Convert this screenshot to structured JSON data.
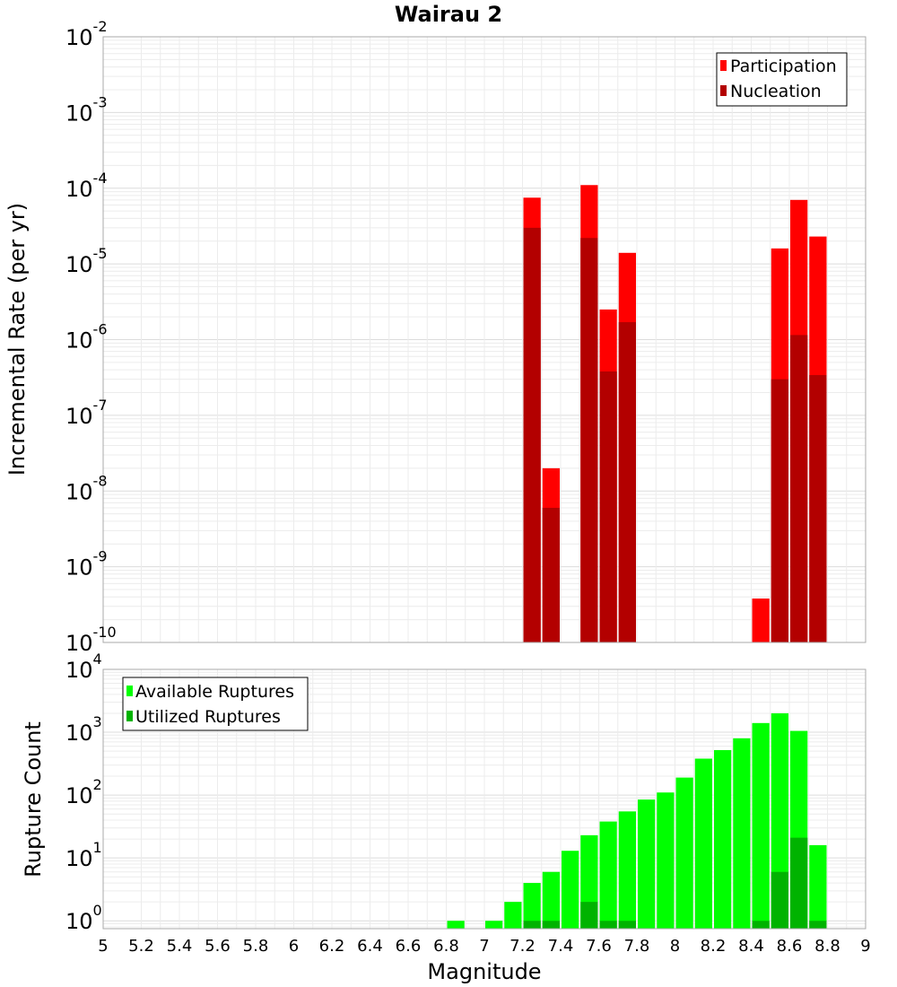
{
  "chart_data": {
    "type": "bar",
    "title": "Wairau 2",
    "xlabel": "Magnitude",
    "x_ticks": [
      "5",
      "5.2",
      "5.4",
      "5.6",
      "5.8",
      "6",
      "6.2",
      "6.4",
      "6.6",
      "6.8",
      "7",
      "7.2",
      "7.4",
      "7.6",
      "7.8",
      "8",
      "8.2",
      "8.4",
      "8.6",
      "8.8",
      "9"
    ],
    "xlim": [
      5,
      9
    ],
    "bin_width": 0.1,
    "grid": true,
    "panels": [
      {
        "id": "rate",
        "ylabel": "Incremental Rate (per yr)",
        "yscale": "log",
        "ylim": [
          1e-10,
          0.01
        ],
        "y_ticks": [
          {
            "base": "10",
            "exp": "-10",
            "value": 1e-10
          },
          {
            "base": "10",
            "exp": "-9",
            "value": 1e-09
          },
          {
            "base": "10",
            "exp": "-8",
            "value": 1e-08
          },
          {
            "base": "10",
            "exp": "-7",
            "value": 1e-07
          },
          {
            "base": "10",
            "exp": "-6",
            "value": 1e-06
          },
          {
            "base": "10",
            "exp": "-5",
            "value": 1e-05
          },
          {
            "base": "10",
            "exp": "-4",
            "value": 0.0001
          },
          {
            "base": "10",
            "exp": "-3",
            "value": 0.001
          },
          {
            "base": "10",
            "exp": "-2",
            "value": 0.01
          }
        ],
        "legend": {
          "position": "top-right"
        },
        "series": [
          {
            "name": "Participation",
            "color": "#ff0000",
            "points": [
              {
                "x": 7.25,
                "y": 7.5e-05
              },
              {
                "x": 7.35,
                "y": 2e-08
              },
              {
                "x": 7.55,
                "y": 0.00011
              },
              {
                "x": 7.65,
                "y": 2.5e-06
              },
              {
                "x": 7.75,
                "y": 1.4e-05
              },
              {
                "x": 8.45,
                "y": 3.8e-10
              },
              {
                "x": 8.55,
                "y": 1.6e-05
              },
              {
                "x": 8.65,
                "y": 7e-05
              },
              {
                "x": 8.75,
                "y": 2.3e-05
              }
            ]
          },
          {
            "name": "Nucleation",
            "color": "#b30000",
            "points": [
              {
                "x": 7.25,
                "y": 3e-05
              },
              {
                "x": 7.35,
                "y": 6e-09
              },
              {
                "x": 7.55,
                "y": 2.2e-05
              },
              {
                "x": 7.65,
                "y": 3.8e-07
              },
              {
                "x": 7.75,
                "y": 1.7e-06
              },
              {
                "x": 8.55,
                "y": 3e-07
              },
              {
                "x": 8.65,
                "y": 1.15e-06
              },
              {
                "x": 8.75,
                "y": 3.4e-07
              }
            ]
          }
        ]
      },
      {
        "id": "count",
        "ylabel": "Rupture Count",
        "yscale": "log",
        "ylim": [
          0.75,
          10000
        ],
        "y_ticks": [
          {
            "base": "10",
            "exp": "0",
            "value": 1
          },
          {
            "base": "10",
            "exp": "1",
            "value": 10
          },
          {
            "base": "10",
            "exp": "2",
            "value": 100
          },
          {
            "base": "10",
            "exp": "3",
            "value": 1000
          },
          {
            "base": "10",
            "exp": "4",
            "value": 10000
          }
        ],
        "legend": {
          "position": "top-left"
        },
        "series": [
          {
            "name": "Available Ruptures",
            "color": "#00ff00",
            "points": [
              {
                "x": 6.85,
                "y": 1
              },
              {
                "x": 7.05,
                "y": 1
              },
              {
                "x": 7.15,
                "y": 2
              },
              {
                "x": 7.25,
                "y": 4
              },
              {
                "x": 7.35,
                "y": 6
              },
              {
                "x": 7.45,
                "y": 13
              },
              {
                "x": 7.55,
                "y": 23
              },
              {
                "x": 7.65,
                "y": 38
              },
              {
                "x": 7.75,
                "y": 55
              },
              {
                "x": 7.85,
                "y": 85
              },
              {
                "x": 7.95,
                "y": 110
              },
              {
                "x": 8.05,
                "y": 190
              },
              {
                "x": 8.15,
                "y": 380
              },
              {
                "x": 8.25,
                "y": 520
              },
              {
                "x": 8.35,
                "y": 800
              },
              {
                "x": 8.45,
                "y": 1400
              },
              {
                "x": 8.55,
                "y": 2000
              },
              {
                "x": 8.65,
                "y": 1050
              },
              {
                "x": 8.75,
                "y": 16
              }
            ]
          },
          {
            "name": "Utilized Ruptures",
            "color": "#00b300",
            "points": [
              {
                "x": 7.25,
                "y": 1
              },
              {
                "x": 7.35,
                "y": 1
              },
              {
                "x": 7.55,
                "y": 2
              },
              {
                "x": 7.65,
                "y": 1
              },
              {
                "x": 7.75,
                "y": 1
              },
              {
                "x": 8.45,
                "y": 1
              },
              {
                "x": 8.55,
                "y": 6
              },
              {
                "x": 8.65,
                "y": 21
              },
              {
                "x": 8.75,
                "y": 1
              }
            ]
          }
        ]
      }
    ]
  }
}
